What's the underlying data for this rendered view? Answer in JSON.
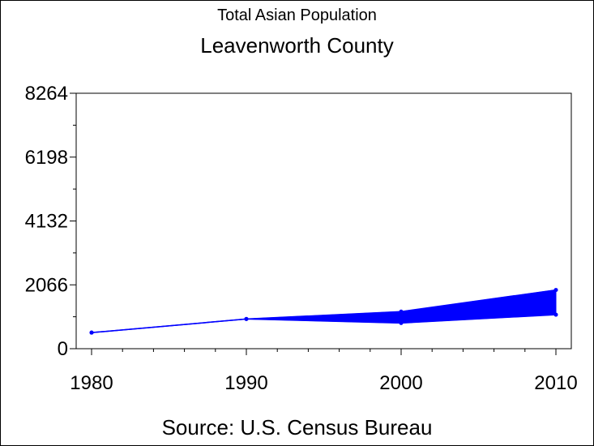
{
  "chart_data": {
    "type": "line",
    "title": "Total Asian Population",
    "subtitle": "Leavenworth County",
    "footnote": "Source: U.S. Census Bureau",
    "x": [
      1980,
      1990,
      2000,
      2010
    ],
    "x_tick_labels": [
      "1980",
      "1990",
      "2000",
      "2010"
    ],
    "xlim": [
      1980,
      2010
    ],
    "y_tick_values": [
      0,
      2066,
      4132,
      6198,
      8264
    ],
    "y_tick_labels": [
      "0",
      "2066",
      "4132",
      "6198",
      "8264"
    ],
    "ylim": [
      0,
      8264
    ],
    "series": [
      {
        "values": [
          520,
          960,
          1200,
          1900
        ]
      },
      {
        "values": [
          520,
          960,
          830,
          1100
        ]
      }
    ],
    "band_between_series": true,
    "grid": false,
    "colors": {
      "series": "#0000ff",
      "axis": "#000000"
    }
  }
}
